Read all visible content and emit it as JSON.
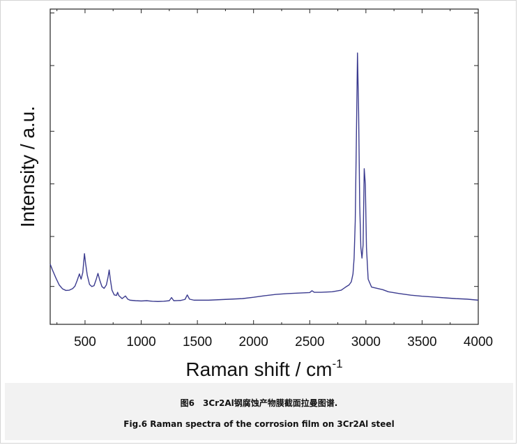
{
  "chart_data": {
    "type": "line",
    "xlabel": "Raman shift / cm",
    "xlabel_superscript": "-1",
    "ylabel": "Intensity / a.u.",
    "xlim": [
      190,
      4000
    ],
    "ylim": [
      0,
      1
    ],
    "x_ticks": [
      500,
      1000,
      1500,
      2000,
      2500,
      3000,
      3500,
      4000
    ],
    "y_ticks_visible": false,
    "grid": false,
    "line_color": "#3b3b8f",
    "series": [
      {
        "x": [
          190,
          210,
          240,
          270,
          300,
          330,
          360,
          390,
          410,
          430,
          450,
          465,
          480,
          495,
          505,
          520,
          540,
          560,
          580,
          600,
          615,
          630,
          650,
          670,
          690,
          705,
          715,
          725,
          740,
          760,
          780,
          790,
          800,
          830,
          860,
          880,
          900,
          950,
          1000,
          1050,
          1100,
          1150,
          1200,
          1250,
          1270,
          1290,
          1350,
          1390,
          1410,
          1430,
          1470,
          1500,
          1550,
          1600,
          1700,
          1800,
          1900,
          2000,
          2100,
          2200,
          2300,
          2400,
          2500,
          2520,
          2540,
          2600,
          2700,
          2780,
          2820,
          2850,
          2870,
          2885,
          2895,
          2905,
          2915,
          2925,
          2935,
          2945,
          2955,
          2965,
          2975,
          2985,
          2995,
          3005,
          3020,
          3050,
          3100,
          3150,
          3200,
          3300,
          3400,
          3500,
          3600,
          3700,
          3800,
          3900,
          4000
        ],
        "y": [
          0.197,
          0.175,
          0.145,
          0.118,
          0.103,
          0.097,
          0.098,
          0.104,
          0.113,
          0.135,
          0.16,
          0.14,
          0.165,
          0.237,
          0.2,
          0.155,
          0.12,
          0.112,
          0.115,
          0.14,
          0.162,
          0.138,
          0.112,
          0.105,
          0.118,
          0.148,
          0.175,
          0.14,
          0.098,
          0.08,
          0.078,
          0.09,
          0.078,
          0.066,
          0.076,
          0.064,
          0.06,
          0.058,
          0.057,
          0.058,
          0.056,
          0.055,
          0.056,
          0.058,
          0.07,
          0.058,
          0.059,
          0.063,
          0.08,
          0.064,
          0.06,
          0.06,
          0.06,
          0.06,
          0.062,
          0.064,
          0.066,
          0.071,
          0.077,
          0.082,
          0.085,
          0.087,
          0.089,
          0.096,
          0.09,
          0.09,
          0.092,
          0.098,
          0.11,
          0.118,
          0.13,
          0.16,
          0.22,
          0.36,
          0.67,
          1.0,
          0.78,
          0.42,
          0.26,
          0.22,
          0.27,
          0.56,
          0.5,
          0.26,
          0.14,
          0.11,
          0.105,
          0.1,
          0.092,
          0.085,
          0.079,
          0.075,
          0.072,
          0.069,
          0.066,
          0.064,
          0.06
        ]
      }
    ]
  },
  "caption": {
    "chinese": "图6　3Cr2Al钢腐蚀产物膜截面拉曼图谱.",
    "english": "Fig.6   Raman spectra of the corrosion film on 3Cr2Al steel"
  }
}
